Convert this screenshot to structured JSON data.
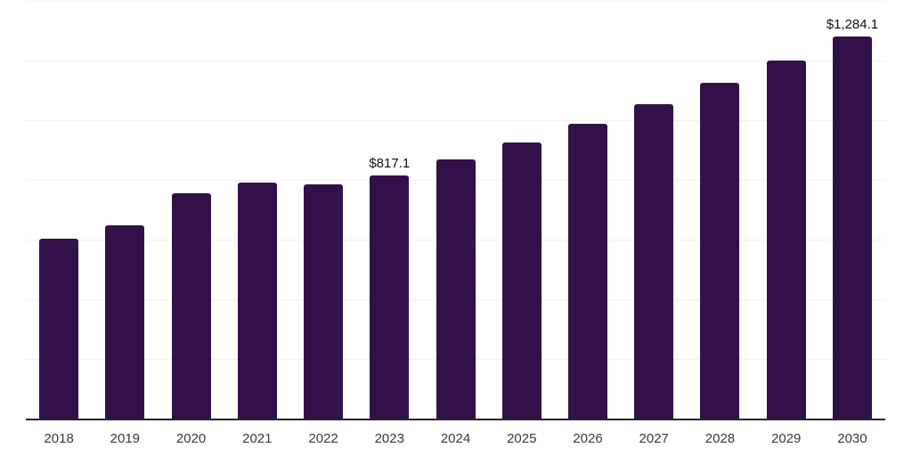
{
  "chart_data": {
    "type": "bar",
    "title": "",
    "xlabel": "",
    "ylabel": "",
    "categories": [
      "2018",
      "2019",
      "2020",
      "2021",
      "2022",
      "2023",
      "2024",
      "2025",
      "2026",
      "2027",
      "2028",
      "2029",
      "2030"
    ],
    "values": [
      607,
      652,
      758,
      794,
      788,
      817.1,
      871.6,
      929.8,
      991.8,
      1058,
      1128.6,
      1203.9,
      1284.1
    ],
    "data_labels": [
      "",
      "",
      "",
      "",
      "",
      "$817.1",
      "",
      "",
      "",
      "",
      "",
      "",
      "$1,284.1"
    ],
    "ylim": [
      0,
      1400
    ],
    "gridline_values": [
      200,
      400,
      600,
      800,
      1000,
      1200,
      1400
    ],
    "grid": "horizontal",
    "legend_position": "none",
    "y_axis_labels_visible": false,
    "colors": {
      "bar": "#32114B",
      "axis_line": "#262626",
      "gridline": "#f2f2f4",
      "data_label_text": "#111111",
      "tick_label_text": "#3a3a3a",
      "background": "#ffffff"
    }
  }
}
